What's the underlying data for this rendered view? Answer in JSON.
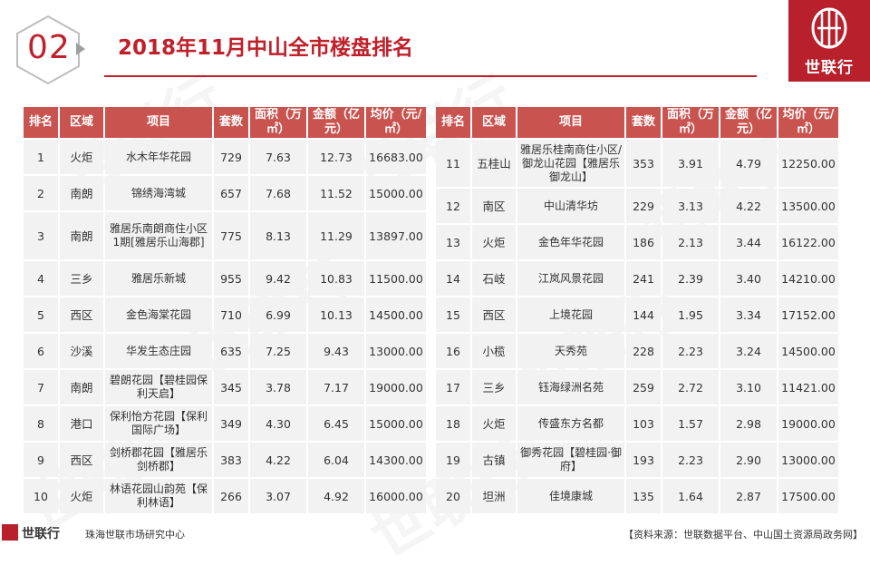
{
  "header": {
    "section_number": "02",
    "title": "2018年11月中山全市楼盘排名"
  },
  "logo": {
    "name": "世联行"
  },
  "watermark_text": "世联行",
  "table": {
    "columns": [
      "排名",
      "区域",
      "项目",
      "套数",
      "面积（万㎡）",
      "金额（亿元）",
      "均价（元/㎡）"
    ],
    "left_rows": [
      {
        "rank": "1",
        "area": "火炬",
        "project": "水木年华花园",
        "units": "729",
        "size": "7.63",
        "amount": "12.73",
        "price": "16683.00"
      },
      {
        "rank": "2",
        "area": "南朗",
        "project": "锦绣海湾城",
        "units": "657",
        "size": "7.68",
        "amount": "11.52",
        "price": "15000.00"
      },
      {
        "rank": "3",
        "area": "南朗",
        "project": "雅居乐南朗商住小区1期[雅居乐山海郡]",
        "units": "775",
        "size": "8.13",
        "amount": "11.29",
        "price": "13897.00"
      },
      {
        "rank": "4",
        "area": "三乡",
        "project": "雅居乐新城",
        "units": "955",
        "size": "9.42",
        "amount": "10.83",
        "price": "11500.00"
      },
      {
        "rank": "5",
        "area": "西区",
        "project": "金色海棠花园",
        "units": "710",
        "size": "6.99",
        "amount": "10.13",
        "price": "14500.00"
      },
      {
        "rank": "6",
        "area": "沙溪",
        "project": "华发生态庄园",
        "units": "635",
        "size": "7.25",
        "amount": "9.43",
        "price": "13000.00"
      },
      {
        "rank": "7",
        "area": "南朗",
        "project": "碧朗花园【碧桂园保利天启】",
        "units": "345",
        "size": "3.78",
        "amount": "7.17",
        "price": "19000.00"
      },
      {
        "rank": "8",
        "area": "港口",
        "project": "保利怡方花园【保利国际广场】",
        "units": "349",
        "size": "4.30",
        "amount": "6.45",
        "price": "15000.00"
      },
      {
        "rank": "9",
        "area": "西区",
        "project": "剑桥郡花园【雅居乐剑桥郡】",
        "units": "383",
        "size": "4.22",
        "amount": "6.04",
        "price": "14300.00"
      },
      {
        "rank": "10",
        "area": "火炬",
        "project": "林语花园山韵苑【保利林语】",
        "units": "266",
        "size": "3.07",
        "amount": "4.92",
        "price": "16000.00"
      }
    ],
    "right_rows": [
      {
        "rank": "11",
        "area": "五桂山",
        "project": "雅居乐桂南商住小区/御龙山花园【雅居乐御龙山】",
        "units": "353",
        "size": "3.91",
        "amount": "4.79",
        "price": "12250.00"
      },
      {
        "rank": "12",
        "area": "南区",
        "project": "中山清华坊",
        "units": "229",
        "size": "3.13",
        "amount": "4.22",
        "price": "13500.00"
      },
      {
        "rank": "13",
        "area": "火炬",
        "project": "金色年华花园",
        "units": "186",
        "size": "2.13",
        "amount": "3.44",
        "price": "16122.00"
      },
      {
        "rank": "14",
        "area": "石岐",
        "project": "江岚风景花园",
        "units": "241",
        "size": "2.39",
        "amount": "3.40",
        "price": "14210.00"
      },
      {
        "rank": "15",
        "area": "西区",
        "project": "上境花园",
        "units": "144",
        "size": "1.95",
        "amount": "3.34",
        "price": "17152.00"
      },
      {
        "rank": "16",
        "area": "小榄",
        "project": "天秀苑",
        "units": "228",
        "size": "2.23",
        "amount": "3.24",
        "price": "14500.00"
      },
      {
        "rank": "17",
        "area": "三乡",
        "project": "钰海绿洲名苑",
        "units": "259",
        "size": "2.72",
        "amount": "3.10",
        "price": "11421.00"
      },
      {
        "rank": "18",
        "area": "火炬",
        "project": "传盛东方名都",
        "units": "103",
        "size": "1.57",
        "amount": "2.98",
        "price": "19000.00"
      },
      {
        "rank": "19",
        "area": "古镇",
        "project": "御秀花园【碧桂园·御府】",
        "units": "193",
        "size": "2.23",
        "amount": "2.90",
        "price": "13000.00"
      },
      {
        "rank": "20",
        "area": "坦洲",
        "project": "佳境康城",
        "units": "135",
        "size": "1.64",
        "amount": "2.87",
        "price": "17500.00"
      }
    ]
  },
  "footer": {
    "logo_text": "世联行",
    "company": "珠海世联市场研究中心",
    "source": "【资料来源：世联数据平台、中山国土资源局政务网】"
  },
  "colors": {
    "accent": "#c0202a",
    "header_cell": "#c9534f",
    "body_cell": "#f2f2f2"
  }
}
